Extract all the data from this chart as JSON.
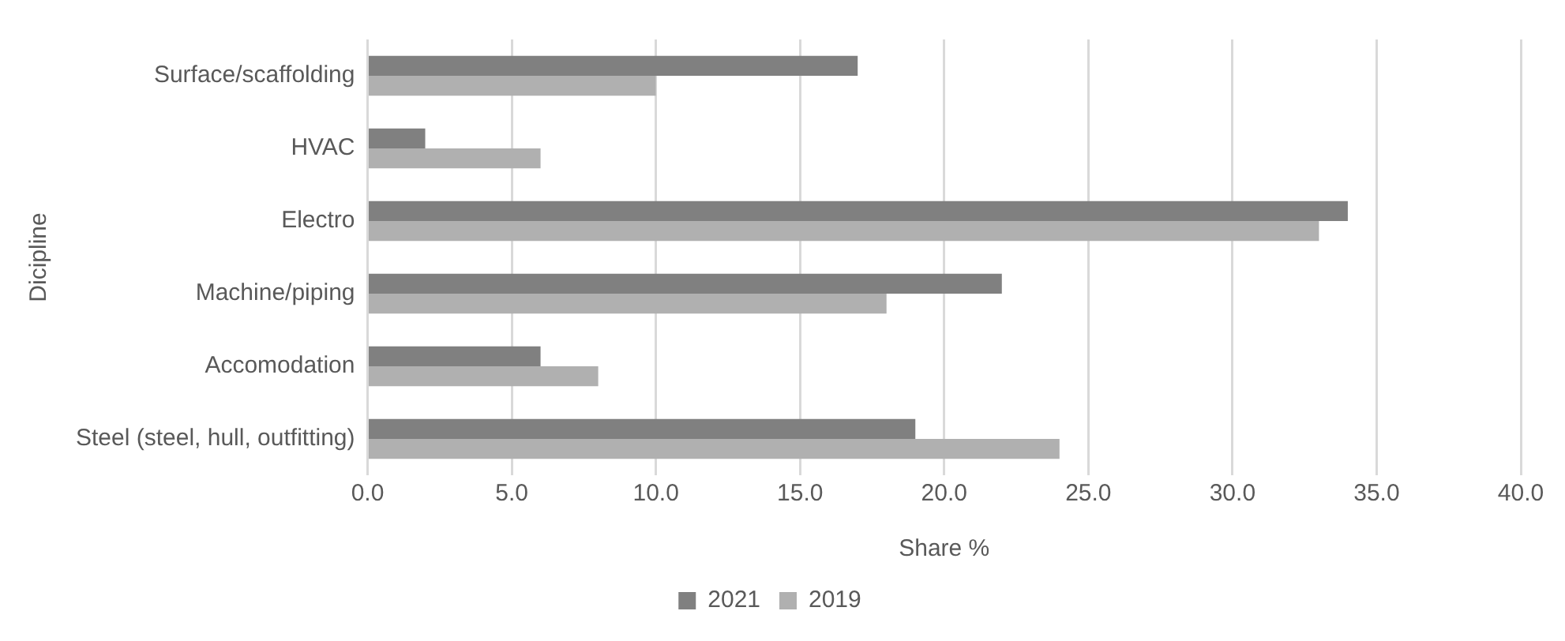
{
  "chart_data": {
    "type": "bar",
    "orientation": "horizontal",
    "xlabel": "Share %",
    "ylabel": "Dicipline",
    "categories": [
      "Surface/scaffolding",
      "HVAC",
      "Electro",
      "Machine/piping",
      "Accomodation",
      "Steel (steel, hull, outfitting)"
    ],
    "series": [
      {
        "name": "2021",
        "color": "#808080",
        "values": [
          17,
          2,
          34,
          22,
          6,
          19
        ]
      },
      {
        "name": "2019",
        "color": "#b0b0b0",
        "values": [
          10,
          6,
          33,
          18,
          8,
          24
        ]
      }
    ],
    "xlim": [
      0,
      40
    ],
    "xticks": [
      {
        "value": 0,
        "label": "0.0"
      },
      {
        "value": 5,
        "label": "5.0"
      },
      {
        "value": 10,
        "label": "10.0"
      },
      {
        "value": 15,
        "label": "15.0"
      },
      {
        "value": 20,
        "label": "20.0"
      },
      {
        "value": 25,
        "label": "25.0"
      },
      {
        "value": 30,
        "label": "30.0"
      },
      {
        "value": 35,
        "label": "35.0"
      },
      {
        "value": 40,
        "label": "40.0"
      }
    ],
    "grid": "x",
    "legend": "bottom"
  }
}
